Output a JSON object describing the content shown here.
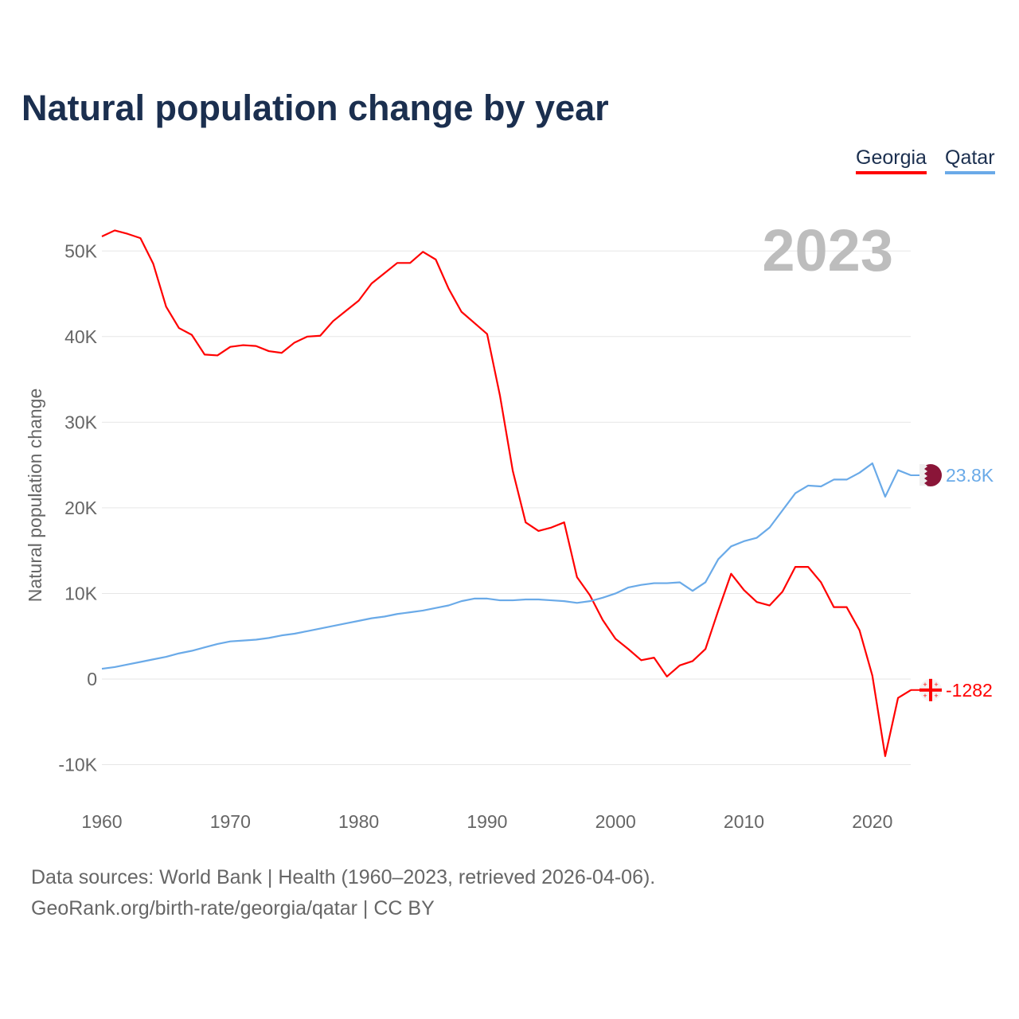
{
  "title": "Natural population change by year",
  "year_watermark": "2023",
  "footer": {
    "line1": "Data sources: World Bank | Health (1960–2023, retrieved 2026-04-06).",
    "line2": "GeoRank.org/birth-rate/georgia/qatar | CC BY"
  },
  "chart_data": {
    "type": "line",
    "title": "Natural population change by year",
    "xlabel": "",
    "ylabel": "Natural population change",
    "xlim": [
      1960,
      2023
    ],
    "ylim": [
      -10000,
      50000
    ],
    "x_ticks": [
      "1960",
      "1970",
      "1980",
      "1990",
      "2000",
      "2010",
      "2020"
    ],
    "y_ticks": [
      {
        "v": -10000,
        "label": "-10K"
      },
      {
        "v": 0,
        "label": "0"
      },
      {
        "v": 10000,
        "label": "10K"
      },
      {
        "v": 20000,
        "label": "20K"
      },
      {
        "v": 30000,
        "label": "30K"
      },
      {
        "v": 40000,
        "label": "40K"
      },
      {
        "v": 50000,
        "label": "50K"
      }
    ],
    "grid": true,
    "legend_position": "top-right",
    "x_start": 1960,
    "series": [
      {
        "name": "Georgia",
        "color": "#ff0000",
        "end_label": "-1282",
        "flag": "georgia-flag",
        "values": [
          51700,
          52400,
          52000,
          51500,
          48500,
          43500,
          41000,
          40200,
          37900,
          37800,
          38800,
          39000,
          38900,
          38300,
          38100,
          39300,
          40000,
          40100,
          41800,
          43000,
          44200,
          46200,
          47400,
          48600,
          48600,
          49900,
          49000,
          45600,
          42900,
          41600,
          40300,
          33100,
          24300,
          18300,
          17300,
          17700,
          18300,
          11900,
          9800,
          6900,
          4700,
          3500,
          2200,
          2500,
          300,
          1600,
          2100,
          3500,
          8000,
          12300,
          10400,
          9000,
          8600,
          10200,
          13100,
          13100,
          11300,
          8400,
          8400,
          5700,
          400,
          -9000,
          -2200,
          -1282
        ]
      },
      {
        "name": "Qatar",
        "color": "#6aaae8",
        "end_label": "23.8K",
        "flag": "qatar-flag",
        "values": [
          1200,
          1400,
          1700,
          2000,
          2300,
          2600,
          3000,
          3300,
          3700,
          4100,
          4400,
          4500,
          4600,
          4800,
          5100,
          5300,
          5600,
          5900,
          6200,
          6500,
          6800,
          7100,
          7300,
          7600,
          7800,
          8000,
          8300,
          8600,
          9100,
          9400,
          9400,
          9200,
          9200,
          9300,
          9300,
          9200,
          9100,
          8900,
          9100,
          9500,
          10000,
          10700,
          11000,
          11200,
          11200,
          11300,
          10300,
          11300,
          14000,
          15500,
          16100,
          16500,
          17700,
          19700,
          21700,
          22600,
          22500,
          23300,
          23300,
          24100,
          25200,
          21300,
          24400,
          23800
        ]
      }
    ]
  }
}
